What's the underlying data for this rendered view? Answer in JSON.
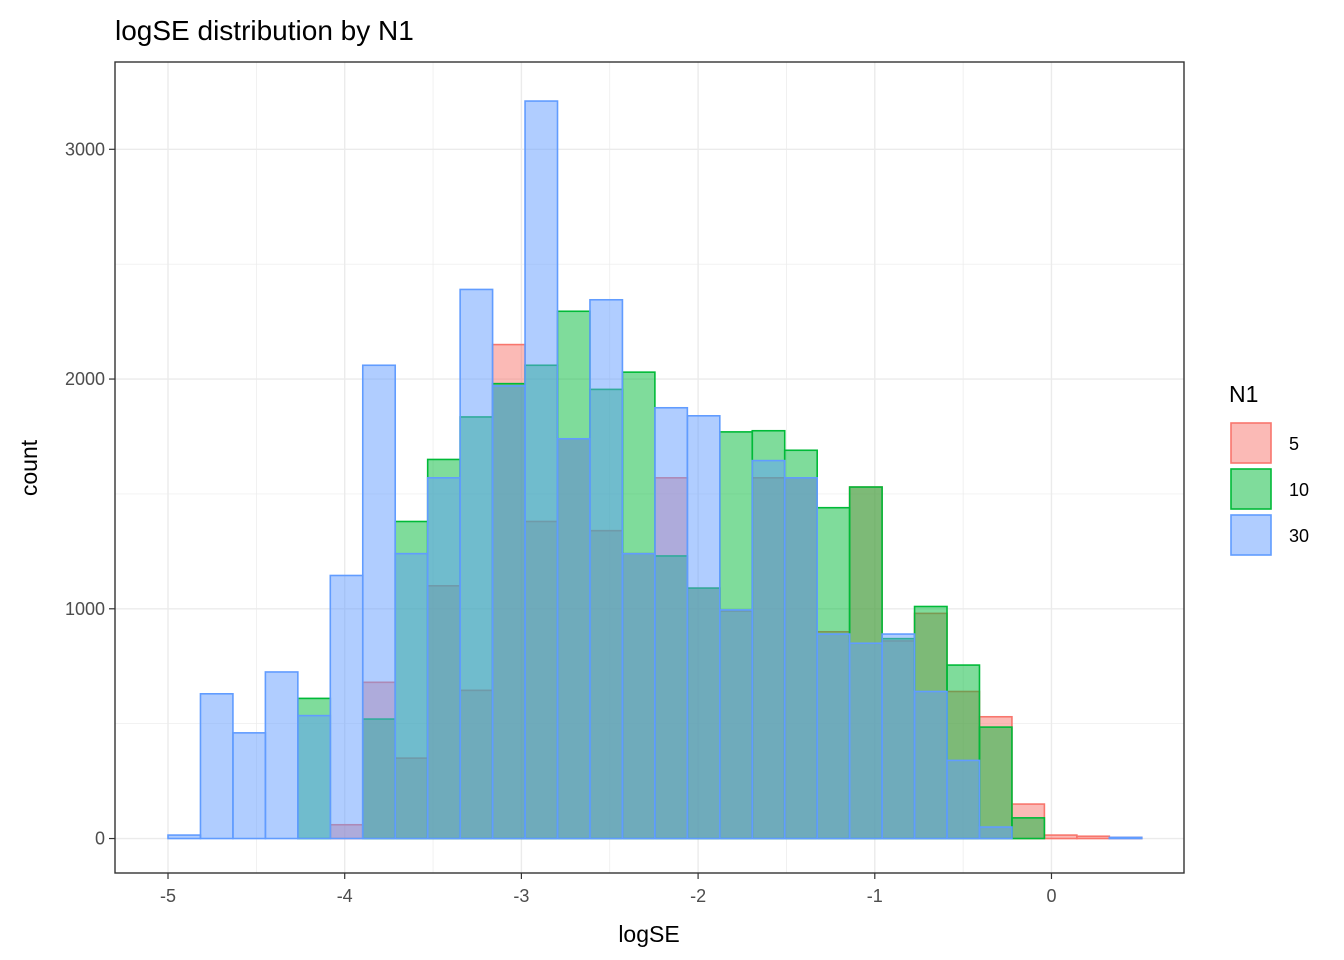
{
  "chart_data": {
    "type": "bar",
    "subtype": "overlaid-histogram",
    "title": "logSE distribution by N1",
    "xlabel": "logSE",
    "ylabel": "count",
    "xlim": [
      -5.3,
      0.75
    ],
    "ylim": [
      -150,
      3380
    ],
    "xticks": [
      -5,
      -4,
      -3,
      -2,
      -1,
      0
    ],
    "yticks": [
      0,
      1000,
      2000,
      3000
    ],
    "grid": true,
    "legend": {
      "title": "N1",
      "position": "right"
    },
    "bin_start": -5.0,
    "bin_width": 0.1837,
    "bin_count": 30,
    "series": [
      {
        "name": "5",
        "color": "#F8766D",
        "values": [
          0,
          0,
          0,
          0,
          0,
          60,
          680,
          350,
          1100,
          645,
          2150,
          1380,
          1740,
          1340,
          1240,
          1570,
          1090,
          990,
          1570,
          1570,
          900,
          1530,
          860,
          980,
          640,
          530,
          150,
          15,
          10,
          5
        ]
      },
      {
        "name": "10",
        "color": "#00BA38",
        "values": [
          0,
          0,
          0,
          0,
          610,
          0,
          520,
          1380,
          1650,
          1835,
          1980,
          2060,
          2295,
          1955,
          2030,
          1230,
          1090,
          1770,
          1775,
          1690,
          1440,
          1530,
          870,
          1010,
          755,
          485,
          90,
          0,
          0,
          0
        ]
      },
      {
        "name": "30",
        "color": "#619CFF",
        "values": [
          15,
          630,
          460,
          725,
          535,
          1145,
          2060,
          1240,
          1570,
          2390,
          1970,
          3210,
          1740,
          2345,
          1240,
          1875,
          1840,
          995,
          1645,
          1570,
          890,
          850,
          890,
          640,
          340,
          50,
          0,
          0,
          0,
          5
        ]
      }
    ]
  }
}
